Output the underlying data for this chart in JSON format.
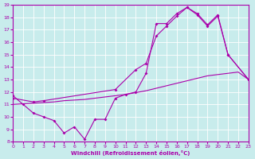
{
  "xlabel": "Windchill (Refroidissement éolien,°C)",
  "background_color": "#c8ecec",
  "line_color": "#aa00aa",
  "grid_color": "#ffffff",
  "xlim": [
    0,
    23
  ],
  "ylim": [
    8,
    19
  ],
  "xticks": [
    0,
    1,
    2,
    3,
    4,
    5,
    6,
    7,
    8,
    9,
    10,
    11,
    12,
    13,
    14,
    15,
    16,
    17,
    18,
    19,
    20,
    21,
    22,
    23
  ],
  "yticks": [
    8,
    9,
    10,
    11,
    12,
    13,
    14,
    15,
    16,
    17,
    18,
    19
  ],
  "line1_x": [
    0,
    1,
    2,
    3,
    4,
    5,
    6,
    7,
    8,
    9,
    10,
    11,
    12,
    13,
    14,
    15,
    16,
    17,
    18,
    19,
    20,
    21,
    23
  ],
  "line1_y": [
    11.7,
    11.0,
    10.3,
    10.0,
    9.7,
    8.7,
    9.2,
    8.2,
    9.8,
    9.8,
    11.5,
    11.8,
    12.0,
    13.5,
    17.5,
    17.5,
    18.3,
    18.8,
    18.3,
    17.4,
    18.2,
    15.0,
    13.0
  ],
  "line2_x": [
    0,
    2,
    3,
    10,
    12,
    13,
    14,
    15,
    16,
    17,
    18,
    19,
    20,
    21,
    23
  ],
  "line2_y": [
    11.5,
    11.2,
    11.3,
    12.2,
    13.8,
    14.3,
    16.5,
    17.3,
    18.1,
    18.8,
    18.2,
    17.3,
    18.1,
    15.0,
    13.0
  ],
  "line3_x": [
    0,
    1,
    2,
    3,
    4,
    5,
    6,
    7,
    8,
    9,
    10,
    11,
    12,
    13,
    14,
    15,
    16,
    17,
    18,
    19,
    20,
    21,
    22,
    23
  ],
  "line3_y": [
    11.0,
    11.05,
    11.1,
    11.15,
    11.2,
    11.3,
    11.35,
    11.4,
    11.5,
    11.6,
    11.7,
    11.8,
    11.95,
    12.1,
    12.3,
    12.5,
    12.7,
    12.9,
    13.1,
    13.3,
    13.4,
    13.5,
    13.6,
    13.0
  ]
}
